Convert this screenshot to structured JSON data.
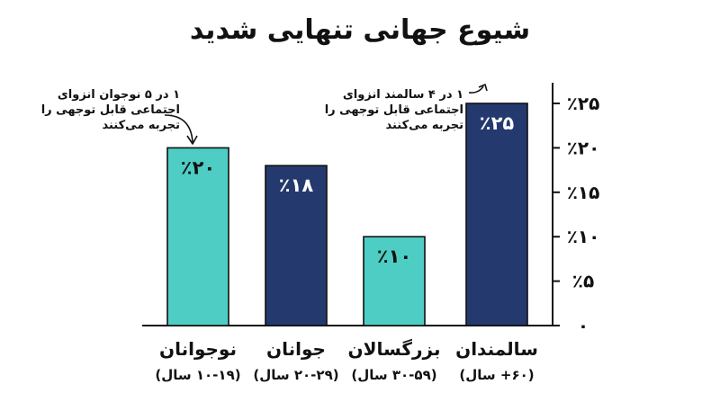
{
  "title": "شیوع جهانی تنهایی شدید",
  "annotations": [
    "۱ در ۵ نوجوان انزوای اجتماعی قابل توجهی را تجربه می‌کنند",
    "۱ در ۴ سالمند انزوای اجتماعی قابل توجهی را تجربه می‌کنند"
  ],
  "colors": {
    "teal": "#4ecdc4",
    "navy": "#24396e",
    "ink": "#111111"
  },
  "chart_data": {
    "type": "bar",
    "title": "شیوع جهانی تنهایی شدید",
    "categories": [
      "نوجوانان",
      "جوانان",
      "بزرگسالان",
      "سالمندان"
    ],
    "category_sublabels": [
      "(۱۰-۱۹ سال)",
      "(۲۰-۲۹ سال)",
      "(۳۰-۵۹ سال)",
      "(۶۰+ سال)"
    ],
    "values": [
      20,
      18,
      10,
      25
    ],
    "value_labels": [
      "٪۲۰",
      "٪۱۸",
      "٪۱۰",
      "٪۲۵"
    ],
    "bar_colors": [
      "teal",
      "navy",
      "teal",
      "navy"
    ],
    "ylim": [
      0,
      25
    ],
    "yticks": [
      0,
      5,
      10,
      15,
      20,
      25
    ],
    "ytick_labels": [
      "۰",
      "٪۵",
      "٪۱۰",
      "٪۱۵",
      "٪۲۰",
      "٪۲۵"
    ],
    "y_axis_side": "right",
    "grid": false,
    "xlabel": "",
    "ylabel": ""
  }
}
